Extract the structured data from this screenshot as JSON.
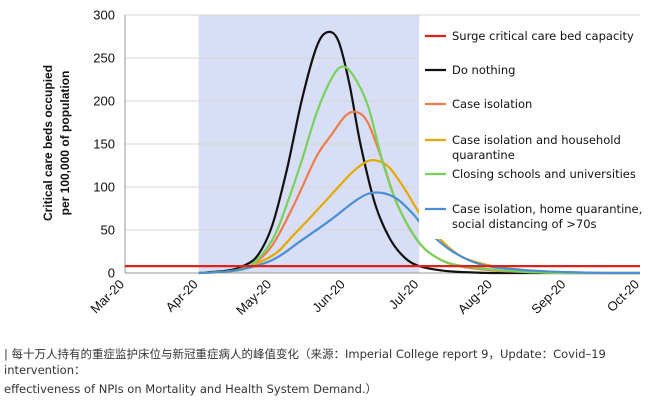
{
  "chart_data": {
    "type": "line",
    "ylabel": [
      "Critical care beds occupied",
      "per 100,000 of population"
    ],
    "x_ticks": [
      "Mar-20",
      "Apr-20",
      "May-20",
      "Jun-20",
      "Jul-20",
      "Aug-20",
      "Sep-20",
      "Oct-20"
    ],
    "y_ticks": [
      0,
      50,
      100,
      150,
      200,
      250,
      300
    ],
    "ylim": [
      0,
      300
    ],
    "shaded_period": [
      "Apr-20",
      "Jul-20"
    ],
    "shaded_color": "#d7def5",
    "capacity": {
      "name": "Surge critical care bed capacity",
      "value": 8,
      "color": "#e0201b"
    },
    "series": [
      {
        "name": "Do nothing",
        "color": "#111111",
        "x": [
          1.0,
          1.4,
          1.6,
          1.8,
          2.0,
          2.2,
          2.4,
          2.6,
          2.75,
          2.9,
          3.05,
          3.2,
          3.4,
          3.6,
          3.8,
          4.0,
          4.3,
          4.6,
          5.0,
          5.5,
          7.0
        ],
        "y": [
          0,
          3,
          8,
          20,
          55,
          120,
          200,
          262,
          280,
          270,
          220,
          150,
          80,
          40,
          18,
          8,
          3,
          1,
          0,
          0,
          0
        ]
      },
      {
        "name": "Case isolation",
        "color": "#ee7d4a",
        "x": [
          1.0,
          1.4,
          1.7,
          2.0,
          2.3,
          2.6,
          2.8,
          3.0,
          3.15,
          3.3,
          3.5,
          3.7,
          4.0,
          4.3,
          4.6,
          5.0,
          5.5,
          6.0,
          7.0
        ],
        "y": [
          0,
          2,
          8,
          32,
          80,
          135,
          160,
          183,
          187,
          175,
          130,
          80,
          35,
          15,
          7,
          3,
          1,
          0,
          0
        ]
      },
      {
        "name": "Case isolation and household quarantine",
        "color": "#e6a800",
        "x": [
          1.0,
          1.5,
          2.0,
          2.3,
          2.6,
          2.9,
          3.1,
          3.3,
          3.45,
          3.6,
          3.8,
          4.0,
          4.3,
          4.6,
          5.0,
          5.5,
          6.0,
          6.5,
          7.0
        ],
        "y": [
          0,
          3,
          20,
          45,
          72,
          100,
          118,
          130,
          130,
          122,
          98,
          70,
          38,
          18,
          8,
          3,
          1,
          0,
          0
        ]
      },
      {
        "name": "Closing schools and universities",
        "color": "#76d25a",
        "x": [
          1.0,
          1.4,
          1.7,
          2.0,
          2.2,
          2.4,
          2.6,
          2.8,
          2.95,
          3.1,
          3.3,
          3.5,
          3.7,
          4.0,
          4.3,
          4.6,
          5.0,
          5.5,
          6.0,
          7.0
        ],
        "y": [
          0,
          2,
          8,
          38,
          80,
          130,
          185,
          225,
          240,
          230,
          195,
          130,
          80,
          35,
          15,
          8,
          4,
          1,
          0,
          0
        ]
      },
      {
        "name": "Case isolation, home quarantine, social distancing of >70s",
        "color": "#4a8fd3",
        "x": [
          1.0,
          1.5,
          2.0,
          2.4,
          2.8,
          3.1,
          3.3,
          3.5,
          3.7,
          3.9,
          4.1,
          4.4,
          4.7,
          5.0,
          5.5,
          6.0,
          6.5,
          7.0
        ],
        "y": [
          0,
          3,
          15,
          38,
          62,
          82,
          92,
          93,
          86,
          70,
          50,
          28,
          14,
          7,
          3,
          1,
          0,
          0
        ]
      }
    ],
    "legend": [
      {
        "label": "Surge critical care bed capacity",
        "color": "#e0201b"
      },
      {
        "label": "Do nothing",
        "color": "#111111"
      },
      {
        "label": "Case isolation",
        "color": "#ee7d4a"
      },
      {
        "label": "Case isolation and household",
        "label2": "quarantine",
        "color": "#e6a800"
      },
      {
        "label": "Closing schools and universities",
        "color": "#76d25a"
      },
      {
        "label": "Case isolation, home quarantine,",
        "label2": "social distancing of >70s",
        "color": "#4a8fd3"
      }
    ]
  },
  "caption": {
    "line1": "| 每十万人持有的重症监护床位与新冠重症病人的峰值变化（来源：Imperial College report 9，Update：Covid–19 intervention：",
    "line2": "effectiveness of NPIs on Mortality and Health System Demand.）"
  }
}
